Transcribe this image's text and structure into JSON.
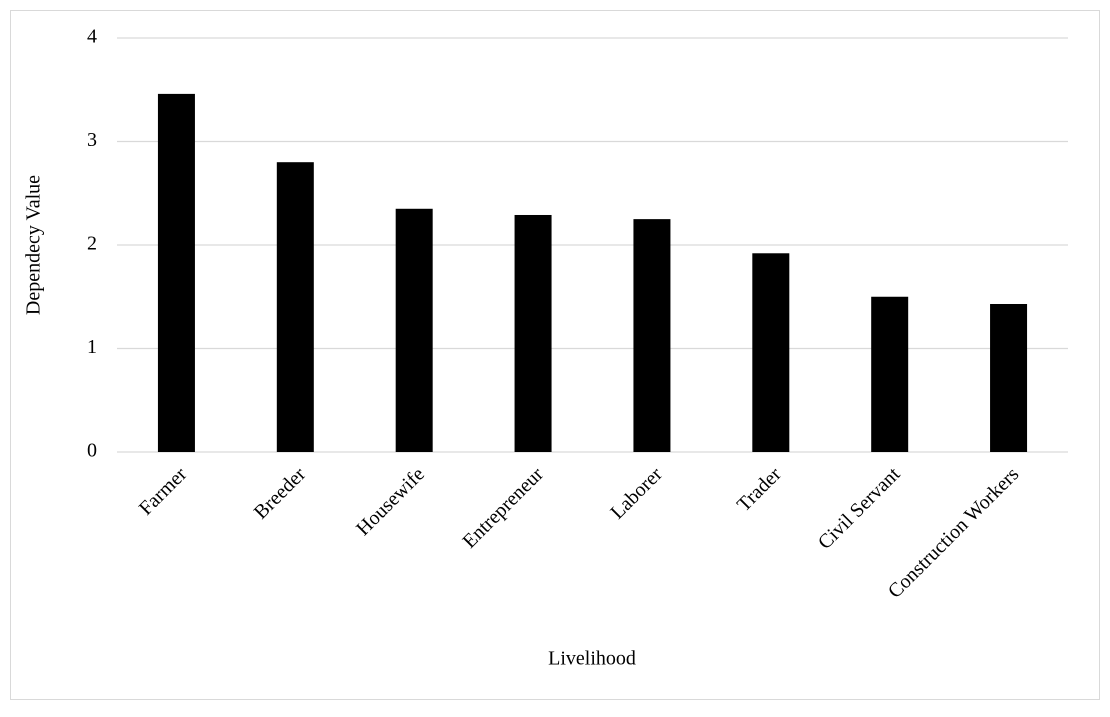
{
  "chart_data": {
    "type": "bar",
    "x_label": "Livelihood",
    "y_label": "Dependecy Value",
    "categories": [
      "Farmer",
      "Breeder",
      "Housewife",
      "Entrepreneur",
      "Laborer",
      "Trader",
      "Civil Servant",
      "Construction Workers"
    ],
    "values": [
      3.46,
      2.8,
      2.35,
      2.29,
      2.25,
      1.92,
      1.5,
      1.43
    ],
    "color": "#000000",
    "ylim": [
      0,
      4
    ],
    "yticks": [
      0,
      1,
      2,
      3,
      4
    ],
    "grid": true
  }
}
